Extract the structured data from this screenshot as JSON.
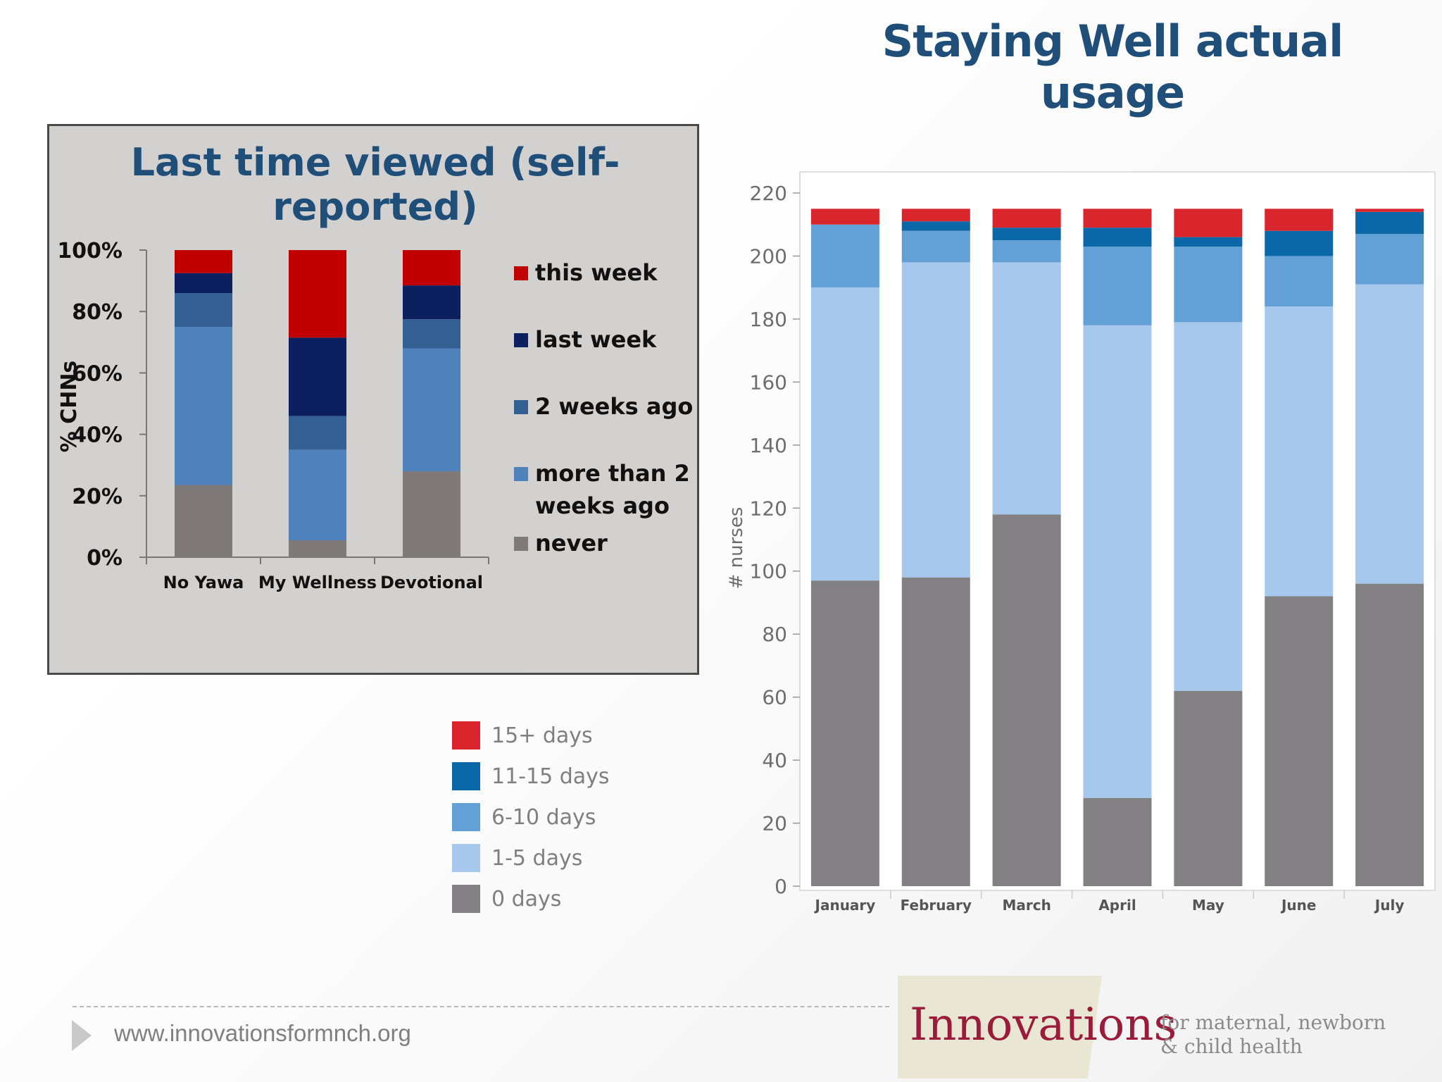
{
  "slide": {
    "title": "Staying Well actual usage",
    "footer_url": "www.innovationsformnch.org",
    "logo_word": "Innovations",
    "logo_tagline_line1": "for maternal, newborn",
    "logo_tagline_line2": "& child health"
  },
  "chart_data": [
    {
      "type": "bar",
      "stacked": true,
      "title": "Last time viewed (self-reported)",
      "ylabel": "% CHNs",
      "xlabel": "",
      "ylim": [
        0,
        100
      ],
      "yticks": [
        "0%",
        "20%",
        "40%",
        "60%",
        "80%",
        "100%"
      ],
      "categories": [
        "No Yawa",
        "My Wellness",
        "Devotional"
      ],
      "series": [
        {
          "name": "never",
          "values": [
            23.5,
            5.5,
            28
          ],
          "color": "#7f7979"
        },
        {
          "name": "more than 2 weeks ago",
          "values": [
            51.5,
            29.5,
            40
          ],
          "color": "#4f81bd"
        },
        {
          "name": "2 weeks ago",
          "values": [
            11,
            11,
            9.5
          ],
          "color": "#345f93"
        },
        {
          "name": "last week",
          "values": [
            6.5,
            25.5,
            11
          ],
          "color": "#0c1f5e"
        },
        {
          "name": "this week",
          "values": [
            7.5,
            28.5,
            11.5
          ],
          "color": "#c00000"
        }
      ],
      "legend": {
        "position": "right",
        "entries": [
          {
            "label": "this week",
            "color": "#c00000"
          },
          {
            "label": "last week",
            "color": "#0c1f5e"
          },
          {
            "label": "2 weeks ago",
            "color": "#345f93"
          },
          {
            "label": "more than 2",
            "label2": "weeks ago",
            "color": "#4f81bd"
          },
          {
            "label": "never",
            "color": "#7f7979"
          }
        ]
      }
    },
    {
      "type": "bar",
      "stacked": true,
      "title": "",
      "ylabel": "# nurses",
      "xlabel": "",
      "ylim": [
        0,
        220
      ],
      "yticks": [
        "0",
        "20",
        "40",
        "60",
        "80",
        "100",
        "120",
        "140",
        "160",
        "180",
        "200",
        "220"
      ],
      "categories": [
        "January",
        "February",
        "March",
        "April",
        "May",
        "June",
        "July"
      ],
      "series": [
        {
          "name": "0 days",
          "values": [
            97,
            98,
            118,
            28,
            62,
            92,
            96
          ],
          "color": "#828082"
        },
        {
          "name": "1-5 days",
          "values": [
            93,
            100,
            80,
            150,
            117,
            92,
            95
          ],
          "color": "#a6c8ec"
        },
        {
          "name": "6-10 days",
          "values": [
            20,
            10,
            7,
            25,
            24,
            16,
            16
          ],
          "color": "#63a0d5"
        },
        {
          "name": "11-15 days",
          "values": [
            0,
            3,
            4,
            6,
            3,
            8,
            7
          ],
          "color": "#0a67a8"
        },
        {
          "name": "15+ days",
          "values": [
            5,
            4,
            6,
            6,
            9,
            7,
            1
          ],
          "color": "#d9262d"
        }
      ],
      "legend": {
        "position": "left",
        "entries": [
          {
            "label": "15+ days",
            "color": "#d9262d"
          },
          {
            "label": "11-15 days",
            "color": "#0a67a8"
          },
          {
            "label": "6-10 days",
            "color": "#63a0d5"
          },
          {
            "label": "1-5 days",
            "color": "#a6c8ec"
          },
          {
            "label": "0 days",
            "color": "#828082"
          }
        ]
      }
    }
  ]
}
